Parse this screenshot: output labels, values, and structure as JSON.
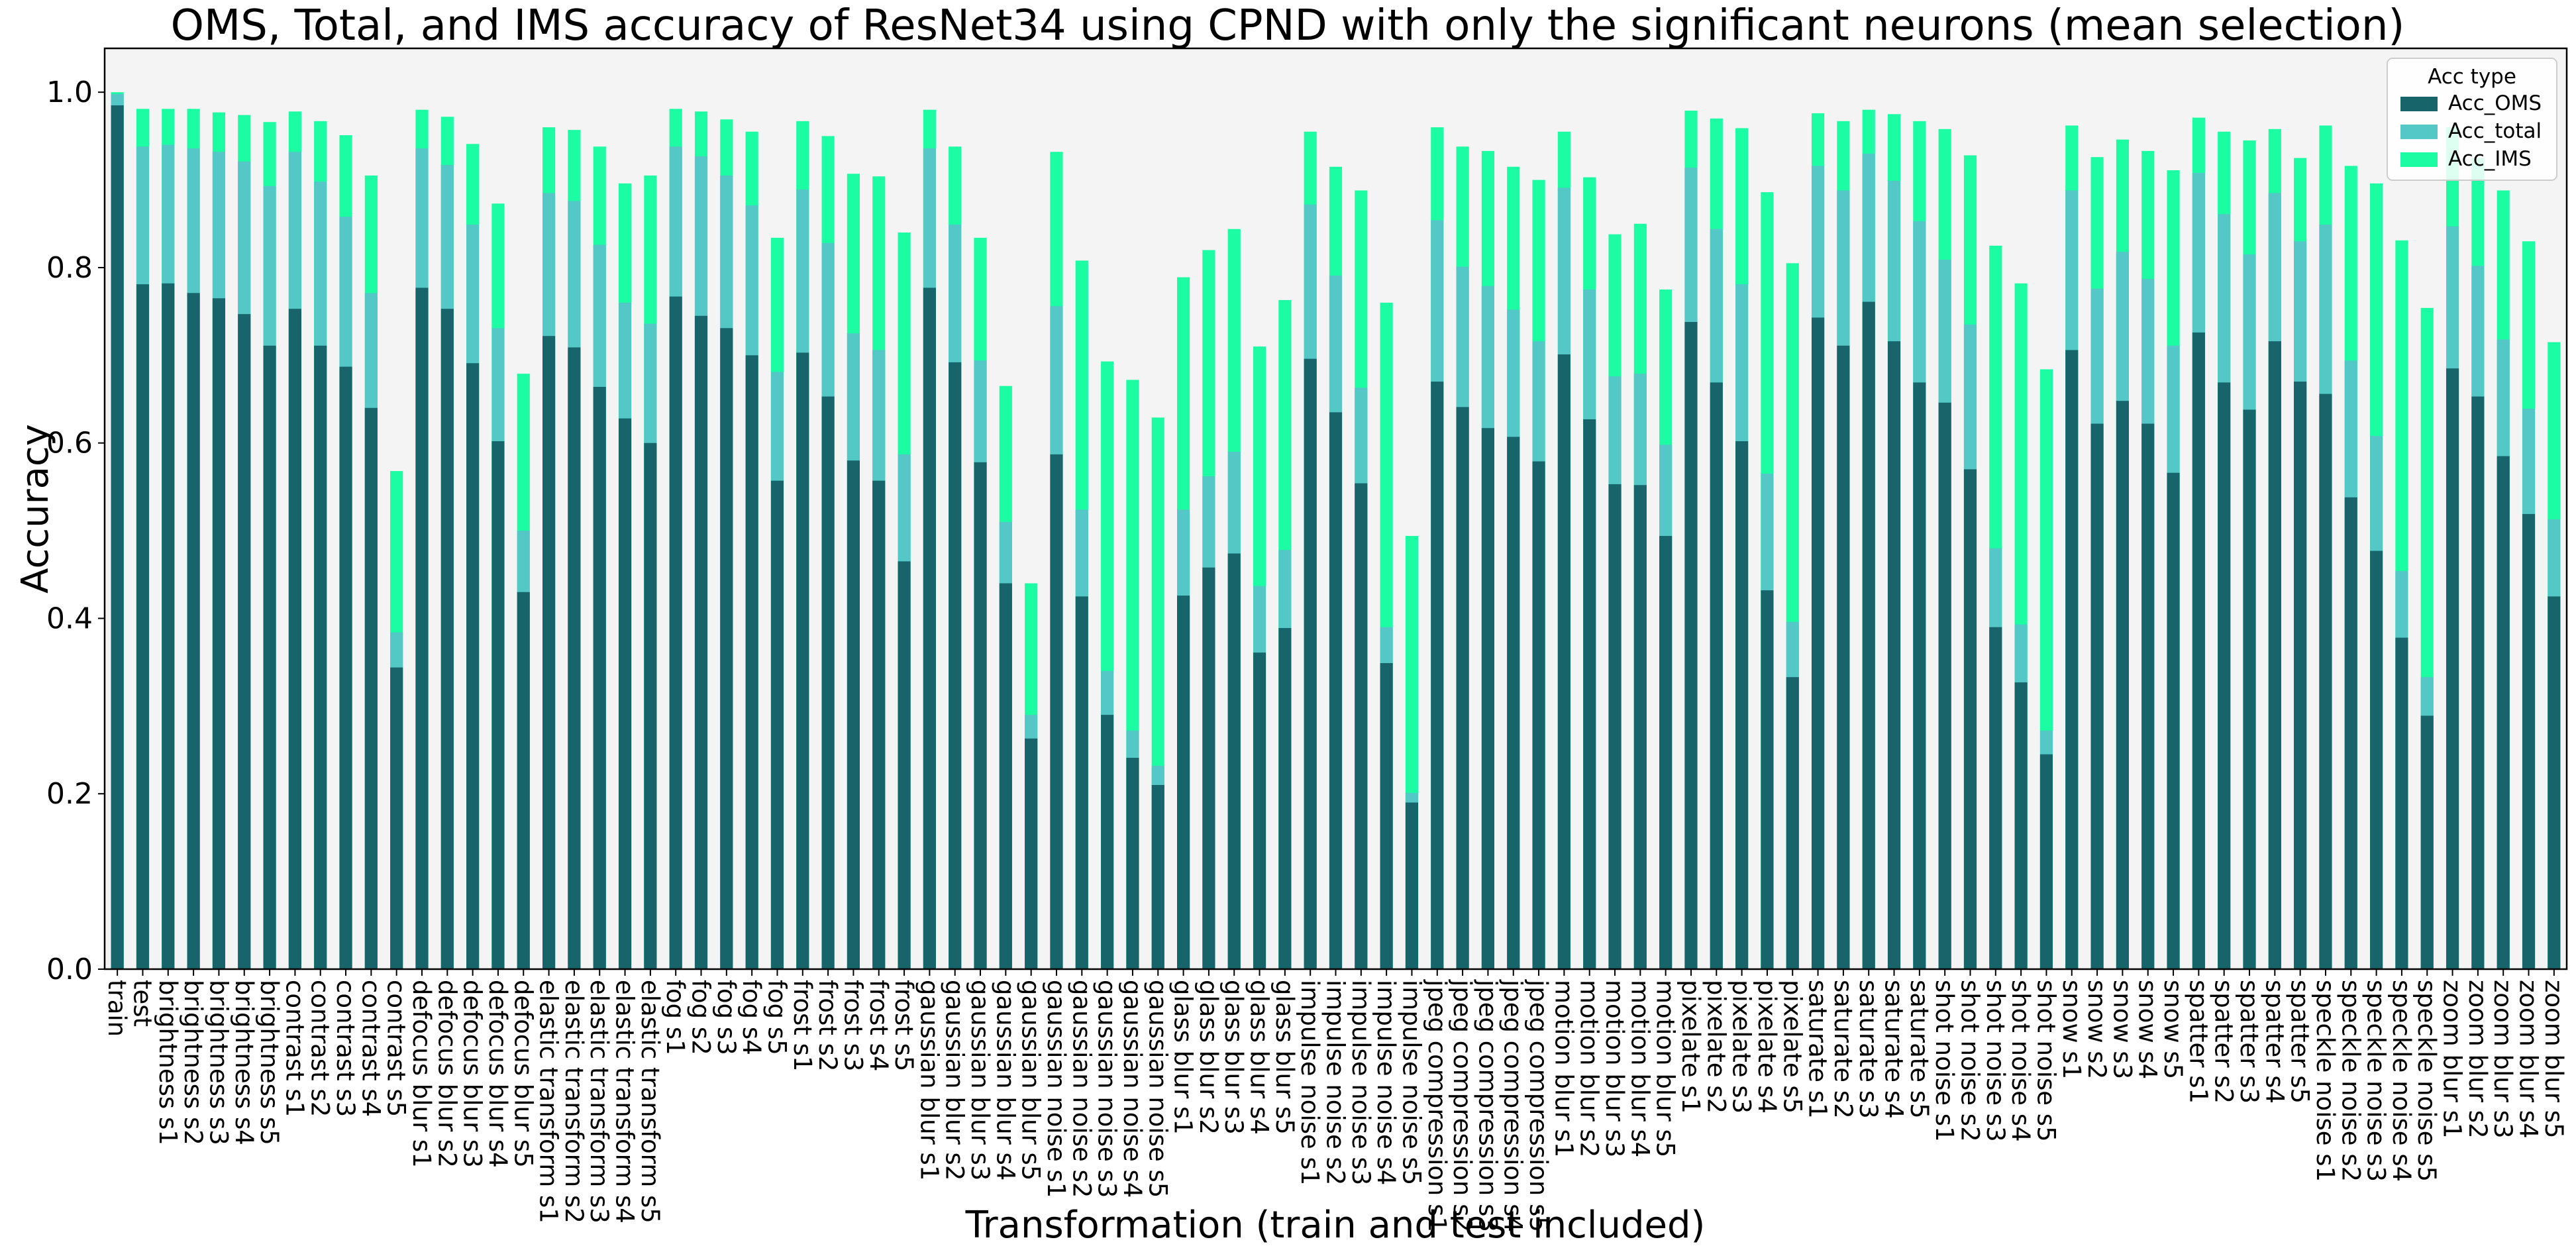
{
  "chart_data": {
    "type": "bar",
    "stacked_overlay": true,
    "title": "OMS, Total,  and IMS accuracy of ResNet34 using CPND with only the significant neurons (mean selection)",
    "xlabel": "Transformation (train and test included)",
    "ylabel": "Accuracy",
    "ylim": [
      0,
      1.05
    ],
    "yticks": [
      "0.0",
      "0.2",
      "0.4",
      "0.6",
      "0.8",
      "1.0"
    ],
    "grid": false,
    "legend": {
      "title": "Acc type",
      "placement": "top-right"
    },
    "colors": {
      "oms": "#17646a",
      "total": "#53c8c6",
      "ims": "#1cfda3",
      "plot_bg": "#f4f4f4"
    },
    "categories": [
      "train",
      "test",
      "brightness s1",
      "brightness s2",
      "brightness s3",
      "brightness s4",
      "brightness s5",
      "contrast s1",
      "contrast s2",
      "contrast s3",
      "contrast s4",
      "contrast s5",
      "defocus blur s1",
      "defocus blur s2",
      "defocus blur s3",
      "defocus blur s4",
      "defocus blur s5",
      "elastic transform s1",
      "elastic transform s2",
      "elastic transform s3",
      "elastic transform s4",
      "elastic transform s5",
      "fog s1",
      "fog s2",
      "fog s3",
      "fog s4",
      "fog s5",
      "frost s1",
      "frost s2",
      "frost s3",
      "frost s4",
      "frost s5",
      "gaussian blur s1",
      "gaussian blur s2",
      "gaussian blur s3",
      "gaussian blur s4",
      "gaussian blur s5",
      "gaussian noise s1",
      "gaussian noise s2",
      "gaussian noise s3",
      "gaussian noise s4",
      "gaussian noise s5",
      "glass blur s1",
      "glass blur s2",
      "glass blur s3",
      "glass blur s4",
      "glass blur s5",
      "impulse noise s1",
      "impulse noise s2",
      "impulse noise s3",
      "impulse noise s4",
      "impulse noise s5",
      "jpeg compression s1",
      "jpeg compression s2",
      "jpeg compression s3",
      "jpeg compression s4",
      "jpeg compression s5",
      "motion blur s1",
      "motion blur s2",
      "motion blur s3",
      "motion blur s4",
      "motion blur s5",
      "pixelate s1",
      "pixelate s2",
      "pixelate s3",
      "pixelate s4",
      "pixelate s5",
      "saturate s1",
      "saturate s2",
      "saturate s3",
      "saturate s4",
      "saturate s5",
      "shot noise s1",
      "shot noise s2",
      "shot noise s3",
      "shot noise s4",
      "shot noise s5",
      "snow s1",
      "snow s2",
      "snow s3",
      "snow s4",
      "snow s5",
      "spatter s1",
      "spatter s2",
      "spatter s3",
      "spatter s4",
      "spatter s5",
      "speckle noise s1",
      "speckle noise s2",
      "speckle noise s3",
      "speckle noise s4",
      "speckle noise s5",
      "zoom blur s1",
      "zoom blur s2",
      "zoom blur s3",
      "zoom blur s4",
      "zoom blur s5"
    ],
    "series": [
      {
        "name": "Acc_OMS",
        "values": [
          0.985,
          0.781,
          0.782,
          0.771,
          0.765,
          0.747,
          0.711,
          0.753,
          0.711,
          0.687,
          0.64,
          0.344,
          0.777,
          0.753,
          0.691,
          0.602,
          0.43,
          0.722,
          0.709,
          0.664,
          0.628,
          0.6,
          0.767,
          0.745,
          0.731,
          0.7,
          0.557,
          0.703,
          0.653,
          0.58,
          0.557,
          0.465,
          0.777,
          0.692,
          0.578,
          0.44,
          0.263,
          0.587,
          0.425,
          0.29,
          0.241,
          0.21,
          0.426,
          0.458,
          0.474,
          0.361,
          0.389,
          0.696,
          0.635,
          0.554,
          0.349,
          0.19,
          0.67,
          0.641,
          0.617,
          0.607,
          0.579,
          0.701,
          0.627,
          0.553,
          0.552,
          0.494,
          0.738,
          0.669,
          0.602,
          0.432,
          0.333,
          0.743,
          0.711,
          0.761,
          0.716,
          0.669,
          0.646,
          0.57,
          0.39,
          0.327,
          0.245,
          0.706,
          0.622,
          0.648,
          0.622,
          0.566,
          0.726,
          0.669,
          0.638,
          0.716,
          0.67,
          0.656,
          0.538,
          0.477,
          0.378,
          0.289,
          0.685,
          0.653,
          0.585,
          0.519,
          0.425
        ]
      },
      {
        "name": "Acc_total",
        "values": [
          0.998,
          0.938,
          0.94,
          0.936,
          0.932,
          0.921,
          0.893,
          0.932,
          0.898,
          0.858,
          0.771,
          0.384,
          0.936,
          0.917,
          0.849,
          0.731,
          0.5,
          0.885,
          0.876,
          0.826,
          0.76,
          0.736,
          0.938,
          0.927,
          0.905,
          0.871,
          0.681,
          0.889,
          0.828,
          0.725,
          0.706,
          0.587,
          0.936,
          0.849,
          0.694,
          0.51,
          0.29,
          0.756,
          0.524,
          0.34,
          0.272,
          0.232,
          0.524,
          0.562,
          0.59,
          0.437,
          0.478,
          0.872,
          0.791,
          0.663,
          0.39,
          0.201,
          0.854,
          0.801,
          0.779,
          0.752,
          0.716,
          0.891,
          0.775,
          0.676,
          0.679,
          0.598,
          0.914,
          0.844,
          0.781,
          0.565,
          0.396,
          0.916,
          0.888,
          0.93,
          0.899,
          0.853,
          0.809,
          0.735,
          0.48,
          0.393,
          0.272,
          0.888,
          0.776,
          0.818,
          0.787,
          0.711,
          0.908,
          0.861,
          0.815,
          0.885,
          0.83,
          0.849,
          0.694,
          0.608,
          0.454,
          0.333,
          0.847,
          0.802,
          0.718,
          0.639,
          0.513
        ]
      },
      {
        "name": "Acc_IMS",
        "values": [
          1.0,
          0.981,
          0.981,
          0.981,
          0.977,
          0.974,
          0.966,
          0.978,
          0.967,
          0.951,
          0.905,
          0.568,
          0.98,
          0.972,
          0.941,
          0.873,
          0.679,
          0.96,
          0.957,
          0.938,
          0.896,
          0.905,
          0.981,
          0.978,
          0.969,
          0.955,
          0.834,
          0.967,
          0.95,
          0.907,
          0.904,
          0.84,
          0.98,
          0.938,
          0.834,
          0.665,
          0.44,
          0.932,
          0.808,
          0.693,
          0.672,
          0.629,
          0.789,
          0.82,
          0.844,
          0.71,
          0.763,
          0.955,
          0.915,
          0.888,
          0.76,
          0.494,
          0.96,
          0.938,
          0.933,
          0.915,
          0.9,
          0.955,
          0.903,
          0.838,
          0.85,
          0.775,
          0.979,
          0.97,
          0.959,
          0.886,
          0.805,
          0.976,
          0.967,
          0.98,
          0.975,
          0.967,
          0.958,
          0.928,
          0.825,
          0.782,
          0.684,
          0.962,
          0.926,
          0.946,
          0.933,
          0.911,
          0.971,
          0.955,
          0.945,
          0.958,
          0.925,
          0.962,
          0.916,
          0.896,
          0.831,
          0.754,
          0.96,
          0.925,
          0.888,
          0.83,
          0.715
        ]
      }
    ]
  }
}
